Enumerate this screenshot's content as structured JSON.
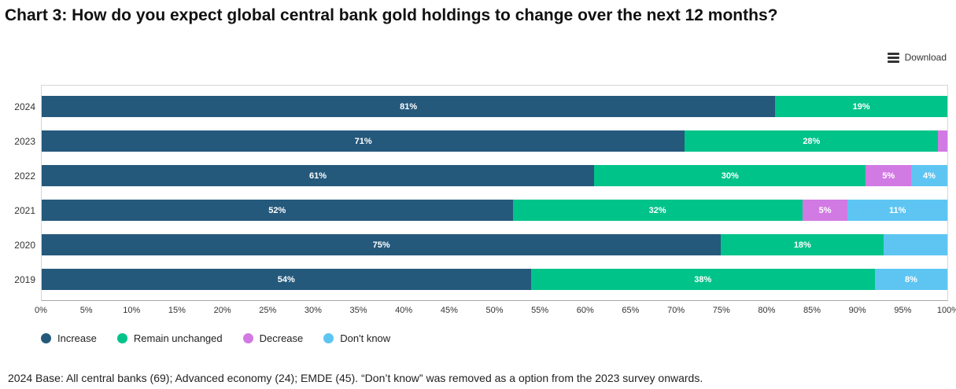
{
  "header": {
    "title": "Chart 3: How do you expect global central bank gold holdings to change over the next 12 months?"
  },
  "toolbar": {
    "download_label": "Download",
    "menu_icon": "hamburger-menu-icon"
  },
  "chart_data": {
    "type": "bar",
    "orientation": "horizontal",
    "stacked": true,
    "title": "Chart 3: How do you expect global central bank gold holdings to change over the next 12 months?",
    "categories": [
      "2024",
      "2023",
      "2022",
      "2021",
      "2020",
      "2019"
    ],
    "series": [
      {
        "name": "Increase",
        "color": "#25597c",
        "values": [
          81,
          71,
          61,
          52,
          75,
          54
        ],
        "labels": [
          "81%",
          "71%",
          "61%",
          "52%",
          "75%",
          "54%"
        ]
      },
      {
        "name": "Remain unchanged",
        "color": "#00c38a",
        "values": [
          19,
          28,
          30,
          32,
          18,
          38
        ],
        "labels": [
          "19%",
          "28%",
          "30%",
          "32%",
          "18%",
          "38%"
        ]
      },
      {
        "name": "Decrease",
        "color": "#d27ae3",
        "values": [
          0,
          1,
          5,
          5,
          0,
          0
        ],
        "labels": [
          "",
          "",
          "5%",
          "5%",
          "",
          ""
        ]
      },
      {
        "name": "Don't know",
        "color": "#5ec5f2",
        "values": [
          0,
          0,
          4,
          11,
          7,
          8
        ],
        "labels": [
          "",
          "",
          "4%",
          "11%",
          "",
          "8%"
        ]
      }
    ],
    "xlim": [
      0,
      100
    ],
    "xticks": [
      "0%",
      "5%",
      "10%",
      "15%",
      "20%",
      "25%",
      "30%",
      "35%",
      "40%",
      "45%",
      "50%",
      "55%",
      "60%",
      "65%",
      "70%",
      "75%",
      "80%",
      "85%",
      "90%",
      "95%",
      "100%"
    ],
    "grid": false,
    "legend_position": "bottom-left",
    "value_label_color": "#ffffff"
  },
  "footnote": "2024 Base: All central banks (69); Advanced economy (24); EMDE (45). “Don’t know” was removed as a option from the 2023 survey onwards."
}
